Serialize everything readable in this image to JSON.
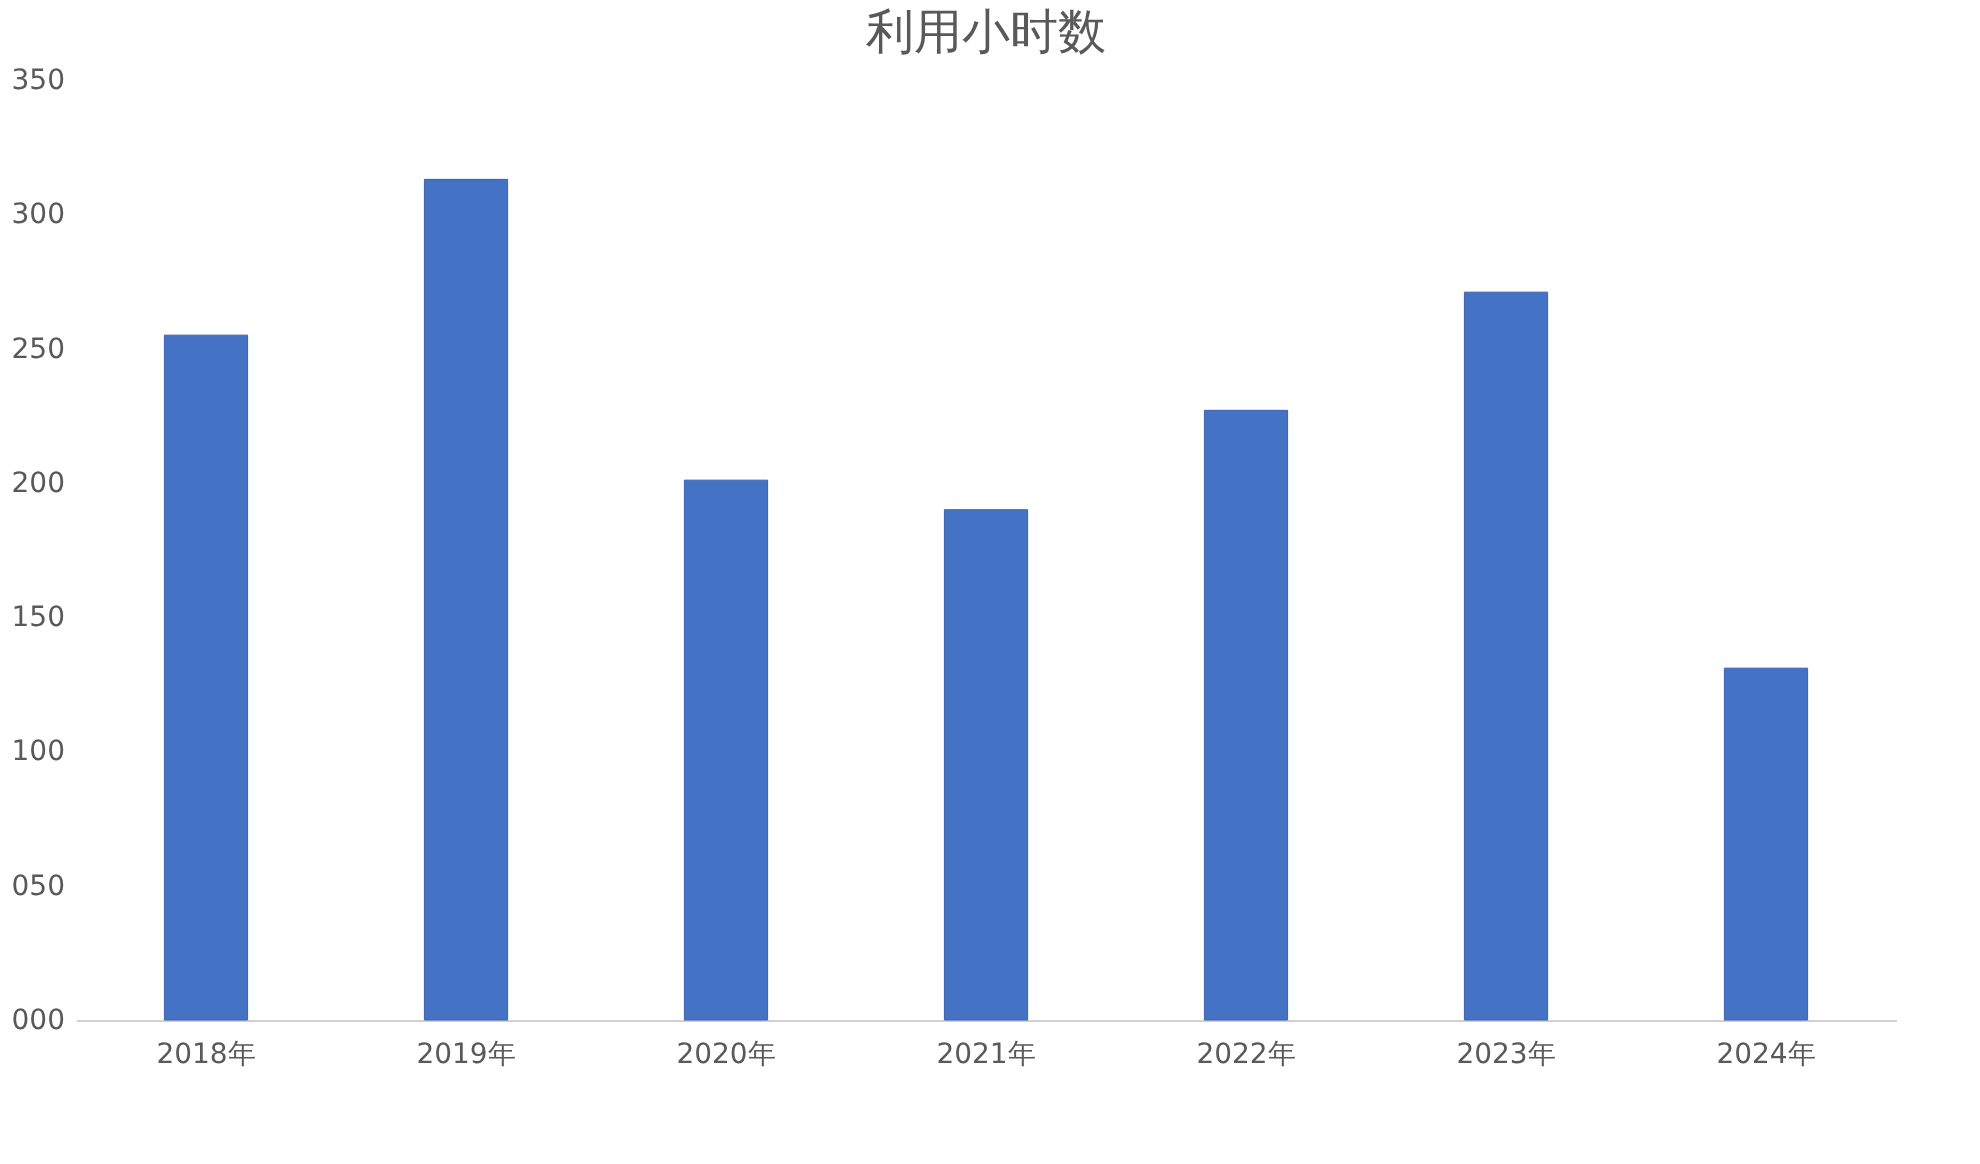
{
  "chart_data": {
    "type": "bar",
    "title": "利用小时数",
    "categories": [
      "2018年",
      "2019年",
      "2020年",
      "2021年",
      "2022年",
      "2023年",
      "2024年"
    ],
    "values": [
      255,
      313,
      201,
      190,
      227,
      271,
      131
    ],
    "color": "#4472c4",
    "ylim": [
      0,
      350
    ],
    "yticks": [
      {
        "value": 0,
        "label": "000"
      },
      {
        "value": 50,
        "label": "050"
      },
      {
        "value": 100,
        "label": "100"
      },
      {
        "value": 150,
        "label": "150"
      },
      {
        "value": 200,
        "label": "200"
      },
      {
        "value": 250,
        "label": "250"
      },
      {
        "value": 300,
        "label": "300"
      },
      {
        "value": 350,
        "label": "350"
      }
    ],
    "grid": false
  }
}
